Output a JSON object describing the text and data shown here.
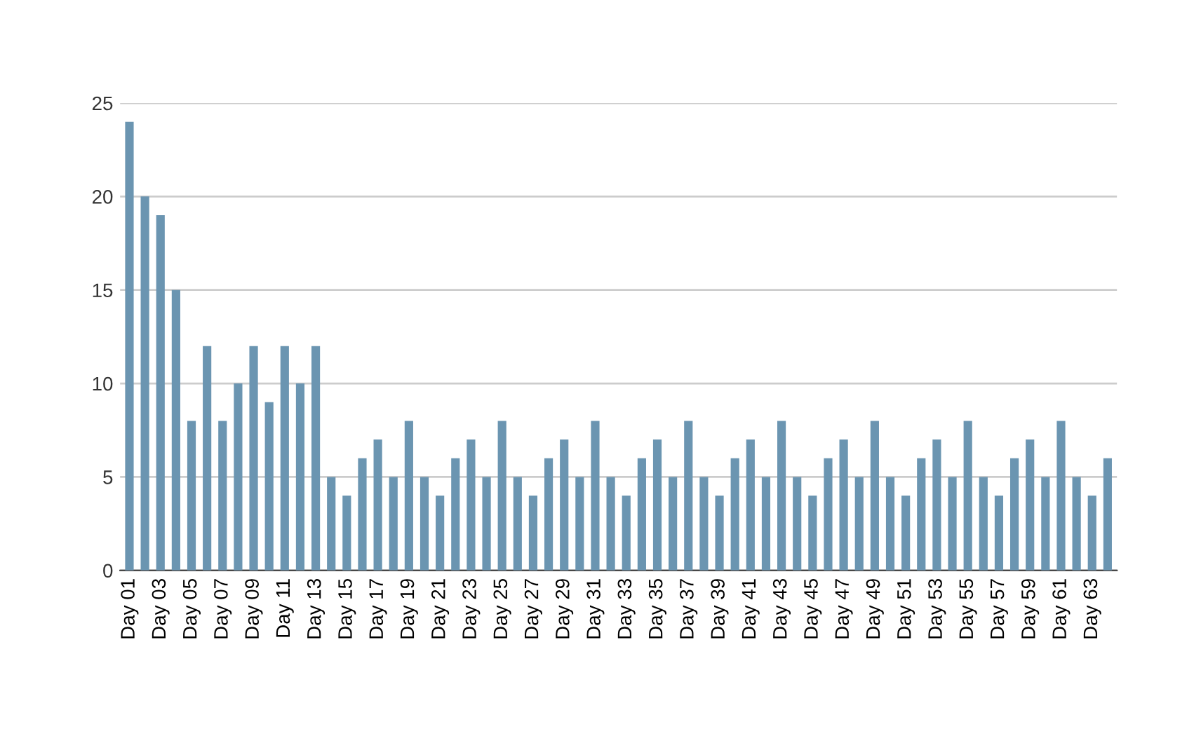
{
  "chart_data": {
    "type": "bar",
    "categories": [
      "Day 01",
      null,
      "Day 03",
      null,
      "Day 05",
      null,
      "Day 07",
      null,
      "Day 09",
      null,
      "Day 11",
      null,
      "Day 13",
      null,
      "Day 15",
      null,
      "Day 17",
      null,
      "Day 19",
      null,
      "Day 21",
      null,
      "Day 23",
      null,
      "Day 25",
      null,
      "Day 27",
      null,
      "Day 29",
      null,
      "Day 31",
      null,
      "Day 33",
      null,
      "Day 35",
      null,
      "Day 37",
      null,
      "Day 39",
      null,
      "Day 41",
      null,
      "Day 43",
      null,
      "Day 45",
      null,
      "Day 47",
      null,
      "Day 49",
      null,
      "Day 51",
      null,
      "Day 53",
      null,
      "Day 55",
      null,
      "Day 57",
      null,
      "Day 59",
      null,
      "Day 61",
      null,
      "Day 63",
      null
    ],
    "values": [
      24,
      20,
      19,
      15,
      8,
      12,
      8,
      10,
      12,
      9,
      12,
      10,
      12,
      5,
      4,
      6,
      7,
      5,
      8,
      5,
      4,
      6,
      7,
      5,
      8,
      5,
      4,
      6,
      7,
      5,
      8,
      5,
      4,
      6,
      7,
      5,
      8,
      5,
      4,
      6,
      7,
      5,
      8,
      5,
      4,
      6,
      7,
      5,
      8,
      5,
      4,
      6,
      7,
      5,
      8,
      5,
      4,
      6,
      7,
      5,
      8,
      5,
      4,
      6
    ],
    "color": "#6b95b1",
    "ylim": [
      0,
      25
    ],
    "yticks": [
      0,
      5,
      10,
      15,
      20,
      25
    ],
    "grid": "y"
  }
}
